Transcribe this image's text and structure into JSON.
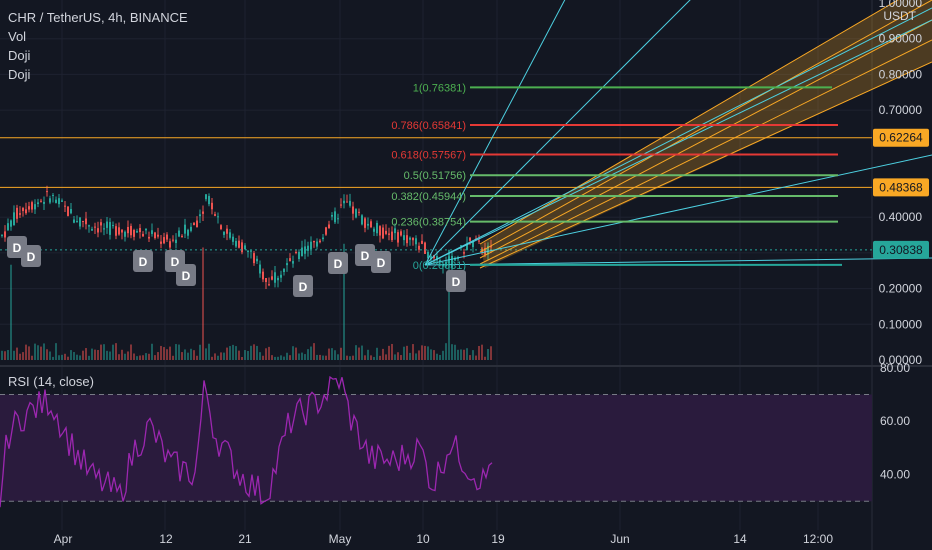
{
  "header": {
    "symbol_line": "CHR / TetherUS, 4h, BINANCE",
    "indicators": [
      "Vol",
      "Doji",
      "Doji"
    ]
  },
  "rsi": {
    "label": "RSI (14, close)",
    "levels": {
      "upper": 70,
      "lower": 30
    },
    "axis_labels": [
      "80.00",
      "60.00",
      "40.00"
    ]
  },
  "price_axis": {
    "currency": "USDT",
    "labels": [
      "1.00000",
      "0.90000",
      "0.80000",
      "0.70000",
      "0.40000",
      "0.30000",
      "0.20000",
      "0.10000",
      "0.00000"
    ],
    "badges": [
      {
        "text": "0.62264",
        "color": "#f9a825",
        "value": 0.62264
      },
      {
        "text": "0.48368",
        "color": "#f9a825",
        "value": 0.48368
      },
      {
        "text": "0.30838",
        "color": "#26a69a",
        "value": 0.30838
      }
    ]
  },
  "time_axis": {
    "labels": [
      "Apr",
      "12",
      "21",
      "May",
      "10",
      "19",
      "Jun",
      "14",
      "12:00"
    ]
  },
  "fib_levels": [
    {
      "label": "1(0.76381)",
      "value": 0.76381,
      "color": "#4caf50"
    },
    {
      "label": "0.786(0.65841)",
      "value": 0.65841,
      "color": "#e53935"
    },
    {
      "label": "0.618(0.57567)",
      "value": 0.57567,
      "color": "#e53935"
    },
    {
      "label": "0.5(0.51756)",
      "value": 0.51756,
      "color": "#66bb6a"
    },
    {
      "label": "0.382(0.45944)",
      "value": 0.45944,
      "color": "#66bb6a"
    },
    {
      "label": "0.236(0.38754)",
      "value": 0.38754,
      "color": "#66bb6a"
    },
    {
      "label": "0(0.26631)",
      "value": 0.26631,
      "color": "#26a69a"
    }
  ],
  "doji_marker_text": "D",
  "colors": {
    "background": "#131722",
    "up": "#26a69a",
    "down": "#ef5350",
    "rsi_line": "#9c27b0",
    "rsi_fill": "#2a1b3d",
    "orange_channel": "#f9a825",
    "cyan": "#4dd0e1"
  },
  "chart_data": {
    "type": "candlestick",
    "title": "CHR / TetherUS, 4h, BINANCE",
    "ylim": [
      0,
      1.0
    ],
    "x_ticks": [
      "Apr",
      "12",
      "21",
      "May",
      "10",
      "19",
      "Jun",
      "14",
      "12:00"
    ],
    "last_price": 0.30838,
    "horizontal_lines": [
      0.62264,
      0.48368
    ],
    "rsi_ylim": [
      20,
      80
    ],
    "rsi_levels": [
      70,
      30
    ]
  }
}
